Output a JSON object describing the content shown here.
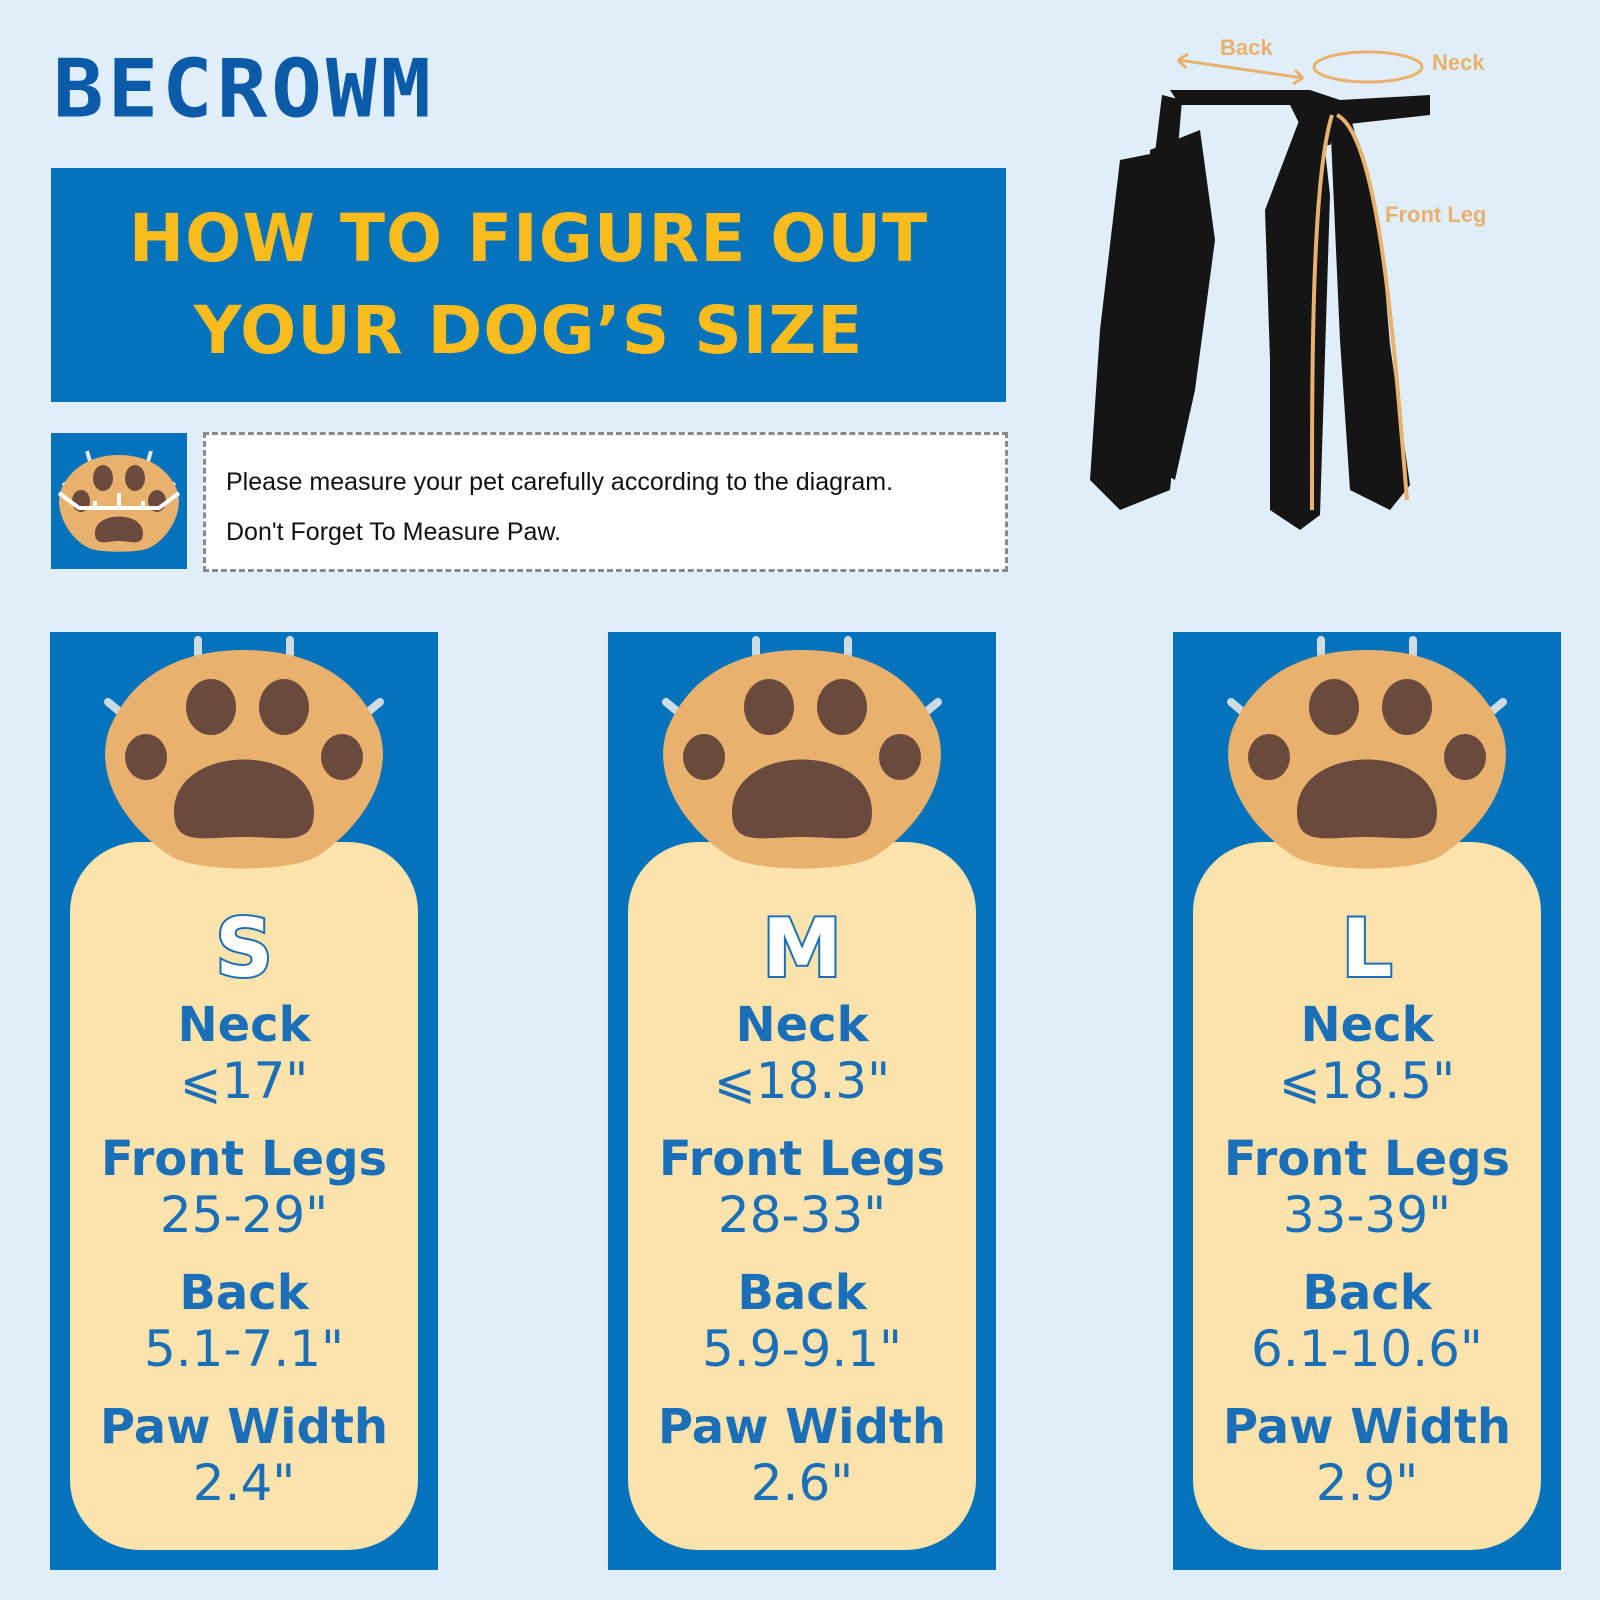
{
  "brand": "BECROWM",
  "title": {
    "line1": "HOW TO FIGURE OUT",
    "line2": "YOUR DOG’S SIZE"
  },
  "note": {
    "line1": "Please measure your pet carefully according to the diagram.",
    "line2": "Don't Forget To Measure Paw."
  },
  "diagram": {
    "back": "Back",
    "neck": "Neck",
    "front_leg": "Front Leg"
  },
  "colors": {
    "background": "#e0eefa",
    "brand_blue": "#0473bb",
    "title_yellow": "#f9bc1c",
    "panel_cream": "#fbe3ab",
    "text_blue": "#1a6fb8",
    "annotation_orange": "#e8b16d"
  },
  "sizes": [
    {
      "size": "S",
      "neck_label": "Neck",
      "neck": "⩽17\"",
      "front_label": "Front Legs",
      "front": "25-29\"",
      "back_label": "Back",
      "back": "5.1-7.1\"",
      "paw_label": "Paw Width",
      "paw": "2.4\""
    },
    {
      "size": "M",
      "neck_label": "Neck",
      "neck": "⩽18.3\"",
      "front_label": "Front Legs",
      "front": "28-33\"",
      "back_label": "Back",
      "back": "5.9-9.1\"",
      "paw_label": "Paw Width",
      "paw": "2.6\""
    },
    {
      "size": "L",
      "neck_label": "Neck",
      "neck": "⩽18.5\"",
      "front_label": "Front Legs",
      "front": "33-39\"",
      "back_label": "Back",
      "back": "6.1-10.6\"",
      "paw_label": "Paw Width",
      "paw": "2.9\""
    }
  ]
}
